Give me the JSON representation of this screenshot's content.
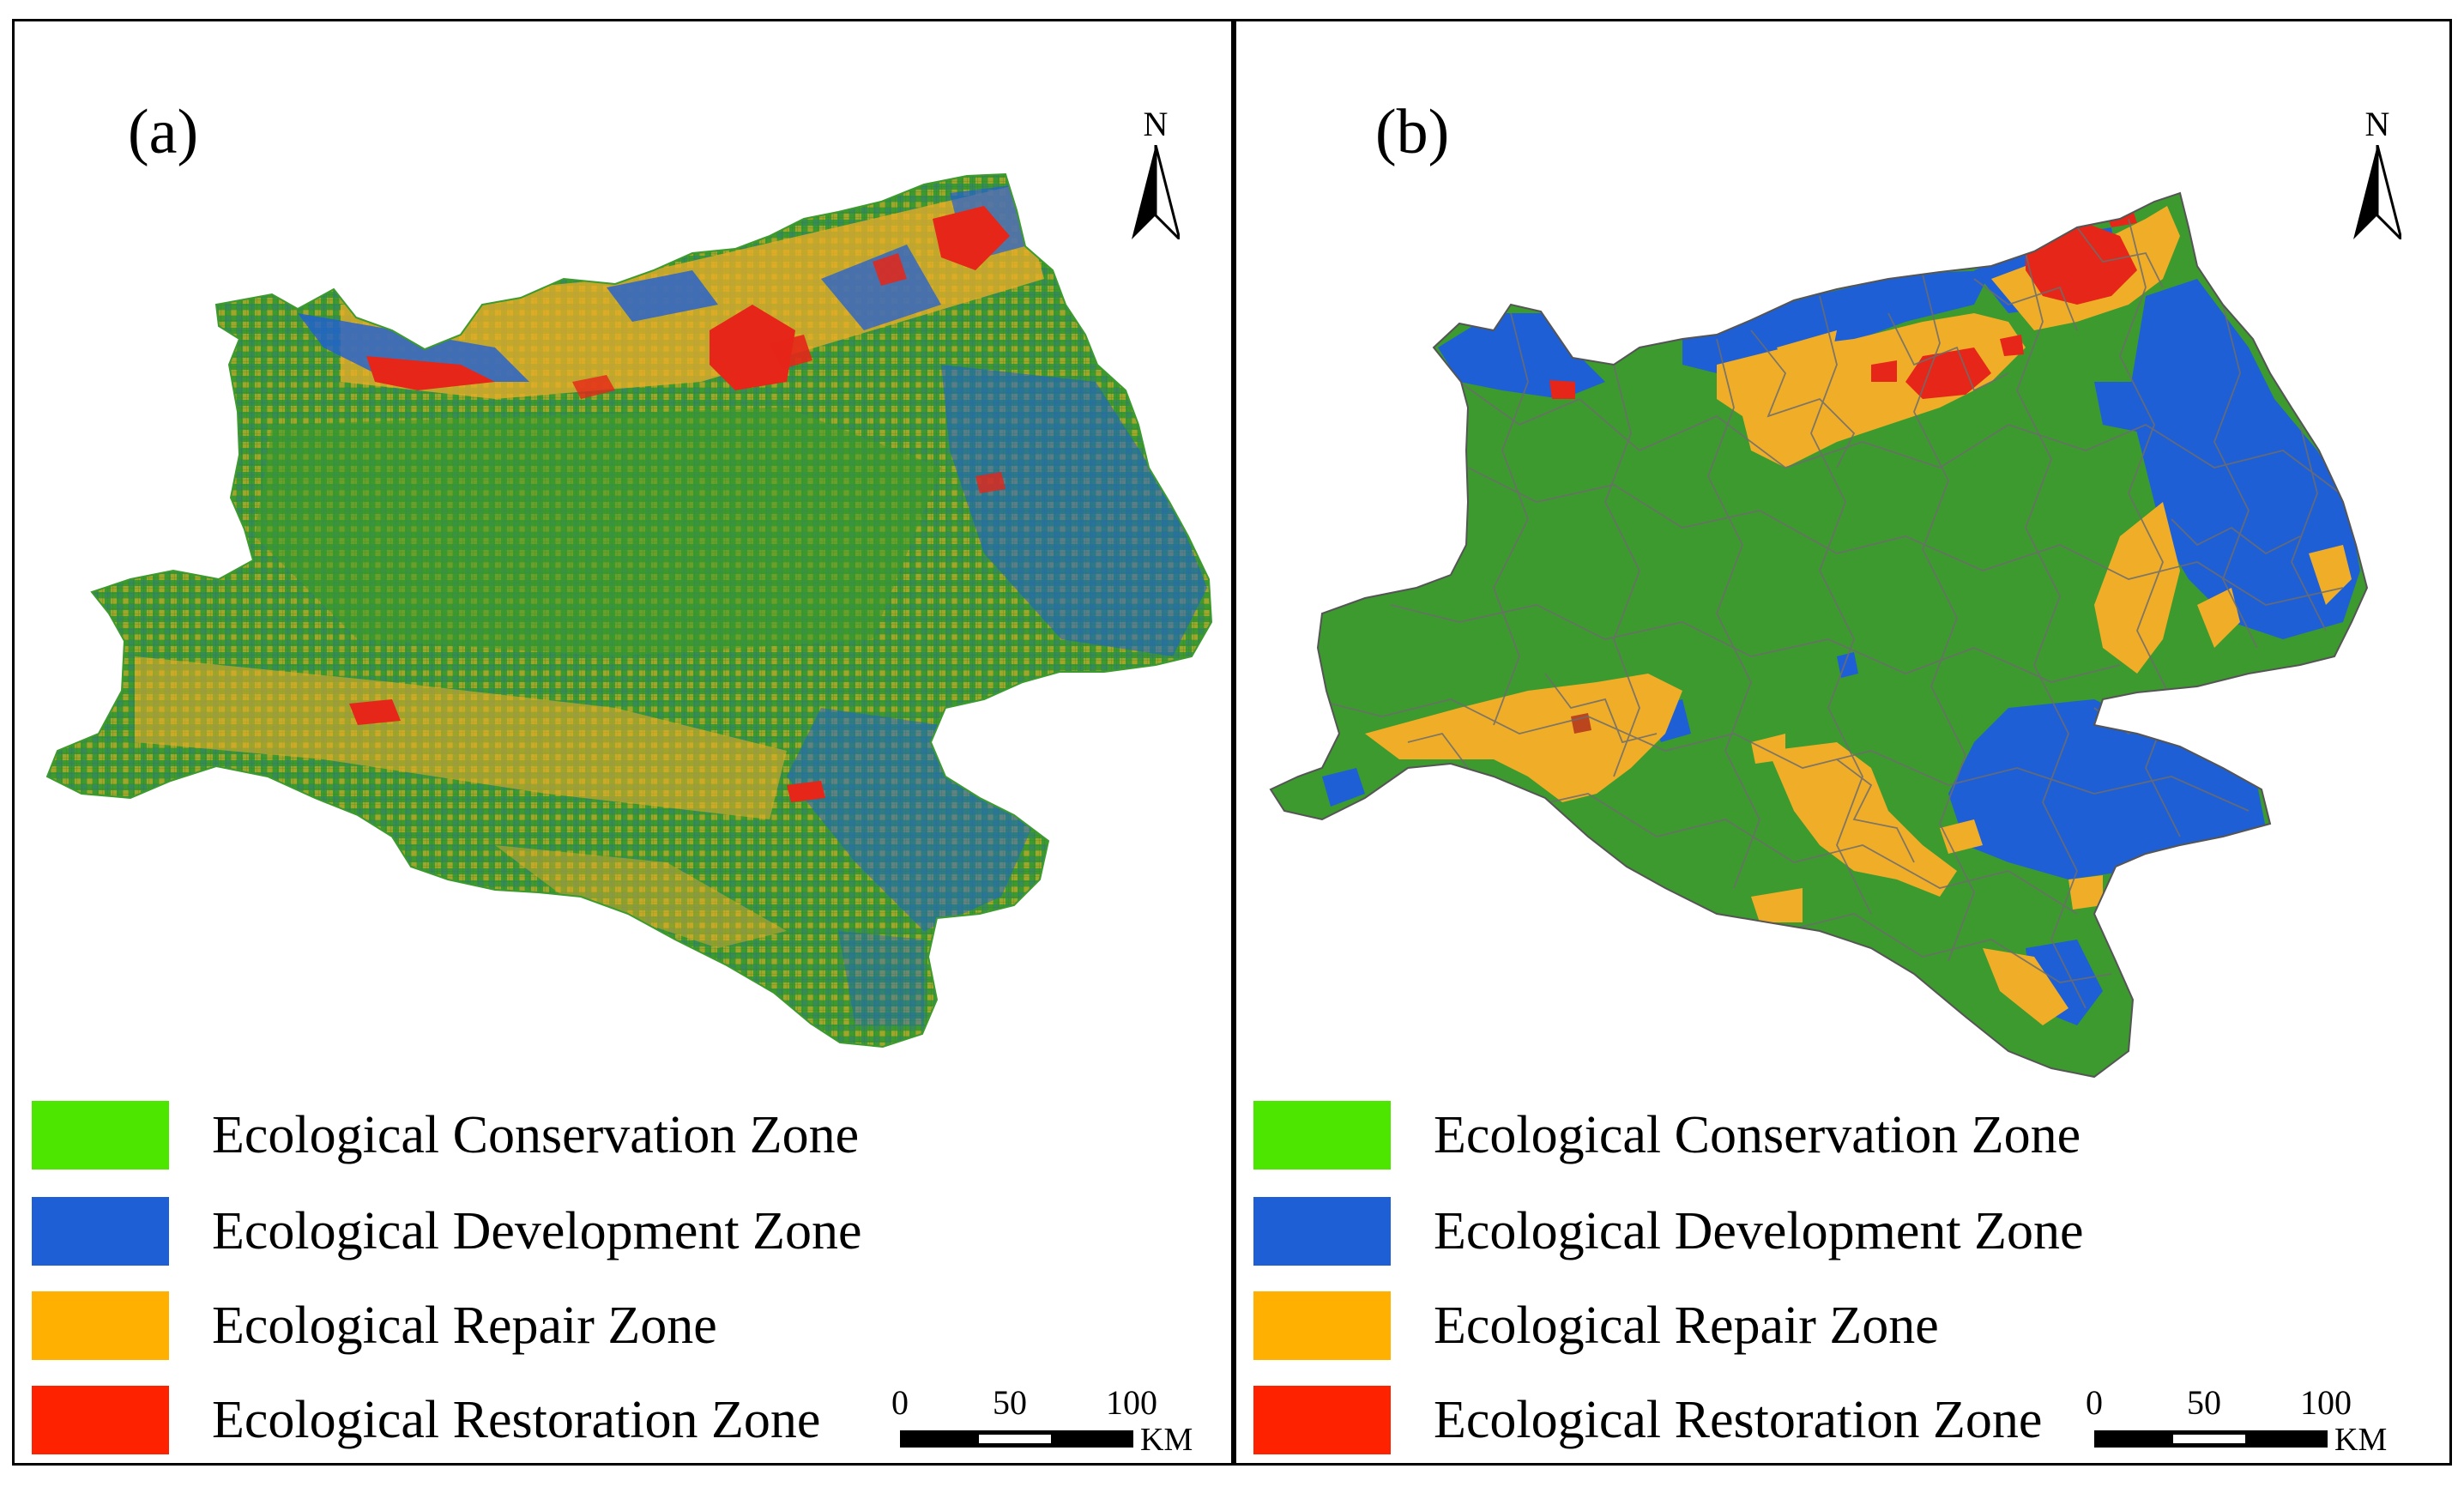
{
  "panels": [
    {
      "id": "a",
      "label": "(a)",
      "north": "N"
    },
    {
      "id": "b",
      "label": "(b)",
      "north": "N"
    }
  ],
  "legend": [
    {
      "label": "Ecological Conservation Zone",
      "color": "#4ce600"
    },
    {
      "label": "Ecological Development Zone",
      "color": "#1f5fd6"
    },
    {
      "label": "Ecological Repair Zone",
      "color": "#ffb000"
    },
    {
      "label": "Ecological Restoration Zone",
      "color": "#ff2200"
    }
  ],
  "map_colors": {
    "conservation": "#3d9a2e",
    "development": "#1f5fd6",
    "repair": "#f0ae28",
    "restoration": "#e62618",
    "boundary": "#6d6d6d"
  },
  "scalebar": {
    "ticks": [
      "0",
      "50",
      "100"
    ],
    "unit": "KM"
  }
}
